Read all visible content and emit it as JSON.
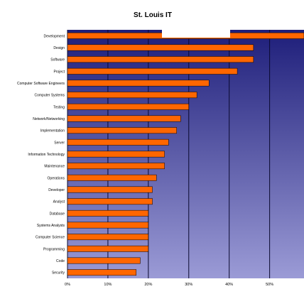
{
  "chart_data": {
    "type": "bar",
    "orientation": "horizontal",
    "title": "St. Louis IT",
    "categories": [
      "Development",
      "Design",
      "Software",
      "Project",
      "Computer Software Engineers",
      "Computer Systems",
      "Testing",
      "Network/Networking",
      "Implementation",
      "Server",
      "Information Technology",
      "Maintenance",
      "Operations",
      "Developer",
      "Analyst",
      "Database",
      "Systems Analysts",
      "Computer Science",
      "Programming",
      "Code",
      "Security"
    ],
    "values": [
      60,
      46,
      46,
      42,
      35,
      32,
      30,
      28,
      27,
      25,
      24,
      24,
      22,
      21,
      21,
      20,
      20,
      20,
      20,
      18,
      17
    ],
    "x_ticks": [
      "0%",
      "10%",
      "20%",
      "30%",
      "40%",
      "50%"
    ],
    "xlim": [
      0,
      58.5
    ],
    "grid": true,
    "bar_color": "#ff6600",
    "plot_gradient_top": "#1e1e7a",
    "plot_gradient_bottom": "#9b9bd6",
    "gridline_color": "#0a0a30"
  }
}
